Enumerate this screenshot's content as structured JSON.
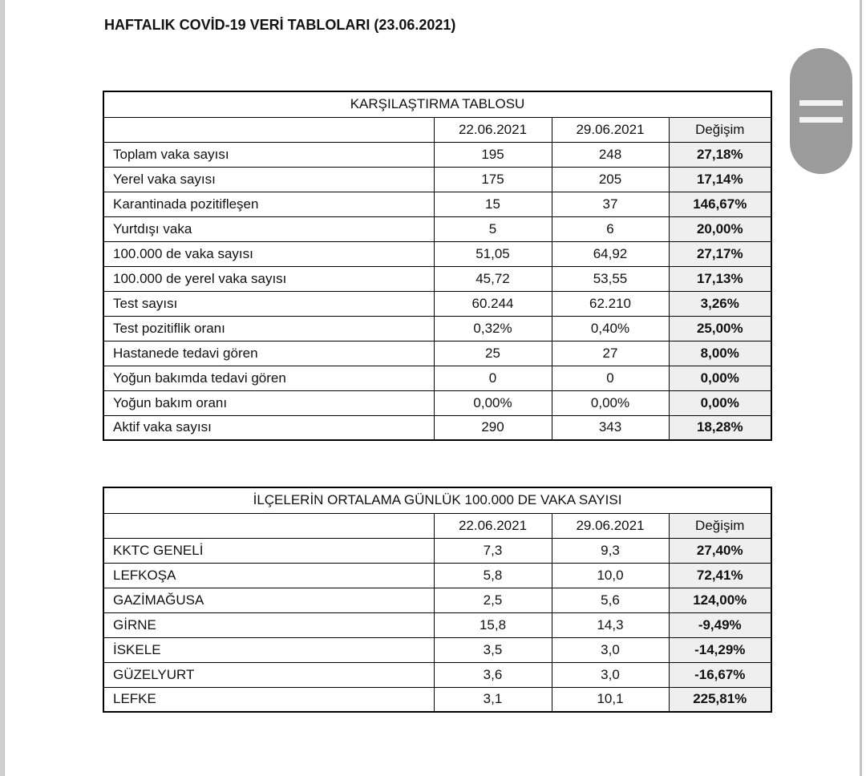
{
  "document": {
    "title": "HAFTALIK COVİD-19 VERİ TABLOLARI (23.06.2021)"
  },
  "colors": {
    "page_bg": "#ffffff",
    "table_border": "#000000",
    "change_column_bg": "#efefef",
    "scroll_handle": "#9b9b9b",
    "left_edge_strip": "#d0d0d0",
    "right_edge_line": "#c5c5c5"
  },
  "tables": [
    {
      "title": "KARŞILAŞTIRMA TABLOSU",
      "columns": [
        "",
        "22.06.2021",
        "29.06.2021",
        "Değişim"
      ],
      "rows": [
        [
          "Toplam vaka sayısı",
          "195",
          "248",
          "27,18%"
        ],
        [
          "Yerel vaka sayısı",
          "175",
          "205",
          "17,14%"
        ],
        [
          "Karantinada pozitifleşen",
          "15",
          "37",
          "146,67%"
        ],
        [
          "Yurtdışı vaka",
          "5",
          "6",
          "20,00%"
        ],
        [
          "100.000 de vaka sayısı",
          "51,05",
          "64,92",
          "27,17%"
        ],
        [
          "100.000 de yerel vaka sayısı",
          "45,72",
          "53,55",
          "17,13%"
        ],
        [
          "Test sayısı",
          "60.244",
          "62.210",
          "3,26%"
        ],
        [
          "Test pozitiflik oranı",
          "0,32%",
          "0,40%",
          "25,00%"
        ],
        [
          "Hastanede tedavi gören",
          "25",
          "27",
          "8,00%"
        ],
        [
          "Yoğun bakımda tedavi gören",
          "0",
          "0",
          "0,00%"
        ],
        [
          "Yoğun bakım oranı",
          "0,00%",
          "0,00%",
          "0,00%"
        ],
        [
          "Aktif vaka sayısı",
          "290",
          "343",
          "18,28%"
        ]
      ]
    },
    {
      "title": "İLÇELERİN ORTALAMA GÜNLÜK 100.000 DE VAKA SAYISI",
      "columns": [
        "",
        "22.06.2021",
        "29.06.2021",
        "Değişim"
      ],
      "rows": [
        [
          "KKTC GENELİ",
          "7,3",
          "9,3",
          "27,40%"
        ],
        [
          "LEFKOŞA",
          "5,8",
          "10,0",
          "72,41%"
        ],
        [
          "GAZİMAĞUSA",
          "2,5",
          "5,6",
          "124,00%"
        ],
        [
          "GİRNE",
          "15,8",
          "14,3",
          "-9,49%"
        ],
        [
          "İSKELE",
          "3,5",
          "3,0",
          "-14,29%"
        ],
        [
          "GÜZELYURT",
          "3,6",
          "3,0",
          "-16,67%"
        ],
        [
          "LEFKE",
          "3,1",
          "10,1",
          "225,81%"
        ]
      ]
    }
  ]
}
